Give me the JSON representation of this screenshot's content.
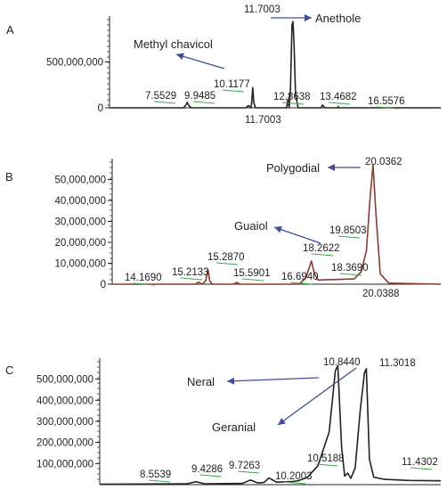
{
  "chart_data": [
    {
      "panel": "A",
      "type": "line",
      "title": "",
      "xlabel": "",
      "ylabel": "",
      "xlim": [
        4.5,
        17.5
      ],
      "ylim": [
        0,
        1000000000
      ],
      "yticks": [
        0,
        500000000
      ],
      "ytick_labels": [
        "0",
        "500,000,000"
      ],
      "line_color": "#222222",
      "points": [
        [
          4.5,
          0
        ],
        [
          7.4,
          0
        ],
        [
          7.5,
          30000000
        ],
        [
          7.55,
          60000000
        ],
        [
          7.6,
          30000000
        ],
        [
          7.7,
          0
        ],
        [
          9.85,
          0
        ],
        [
          9.95,
          25000000
        ],
        [
          10.05,
          0
        ],
        [
          10.08,
          60000000
        ],
        [
          10.12,
          220000000
        ],
        [
          10.16,
          60000000
        ],
        [
          10.22,
          0
        ],
        [
          11.45,
          0
        ],
        [
          11.5,
          90000000
        ],
        [
          11.55,
          0
        ],
        [
          11.6,
          200000000
        ],
        [
          11.66,
          900000000
        ],
        [
          11.7,
          940000000
        ],
        [
          11.74,
          700000000
        ],
        [
          11.8,
          150000000
        ],
        [
          11.9,
          0
        ],
        [
          12.8,
          0
        ],
        [
          12.86,
          30000000
        ],
        [
          12.95,
          0
        ],
        [
          13.45,
          0
        ],
        [
          13.47,
          15000000
        ],
        [
          13.5,
          0
        ],
        [
          17.5,
          0
        ]
      ],
      "peak_labels": [
        {
          "text": "7.5529",
          "x": 7.55
        },
        {
          "text": "9.9485",
          "x": 9.95
        },
        {
          "text": "10.1177",
          "x": 10.12
        },
        {
          "text": "11.7003",
          "x": 11.7,
          "pos": "top"
        },
        {
          "text": "12.8638",
          "x": 12.86
        },
        {
          "text": "13.4682",
          "x": 13.47
        },
        {
          "text": "16.5576",
          "x": 16.56
        },
        {
          "text": "11.7003",
          "x": 11.7,
          "pos": "below"
        }
      ],
      "annotations": [
        {
          "text": "Methyl chavicol",
          "arrow_to_x": 10.12
        },
        {
          "text": "Anethole",
          "arrow_from_x": 11.7
        }
      ]
    },
    {
      "panel": "B",
      "type": "line",
      "title": "",
      "xlabel": "",
      "ylabel": "",
      "xlim": [
        12.5,
        22.0
      ],
      "ylim": [
        0,
        60000000
      ],
      "yticks": [
        0,
        10000000,
        20000000,
        30000000,
        40000000,
        50000000
      ],
      "ytick_labels": [
        "0",
        "10,000,000",
        "20,000,000",
        "30,000,000",
        "40,000,000",
        "50,000,000"
      ],
      "line_color": "#8b3a2e",
      "points": [
        [
          12.5,
          0
        ],
        [
          14.9,
          0
        ],
        [
          15.0,
          1000000
        ],
        [
          15.1,
          0
        ],
        [
          15.2,
          1500000
        ],
        [
          15.27,
          7000000
        ],
        [
          15.32,
          1500000
        ],
        [
          15.4,
          0
        ],
        [
          16.0,
          0
        ],
        [
          16.1,
          800000
        ],
        [
          16.2,
          0
        ],
        [
          17.9,
          0
        ],
        [
          18.1,
          3000000
        ],
        [
          18.26,
          11000000
        ],
        [
          18.35,
          5000000
        ],
        [
          18.45,
          2000000
        ],
        [
          19.5,
          2500000
        ],
        [
          19.7,
          6000000
        ],
        [
          19.85,
          16000000
        ],
        [
          19.95,
          40000000
        ],
        [
          20.04,
          57000000
        ],
        [
          20.12,
          35000000
        ],
        [
          20.25,
          5000000
        ],
        [
          20.5,
          500000
        ],
        [
          22.0,
          0
        ]
      ],
      "peak_labels": [
        {
          "text": "14.1690",
          "x": 14.17
        },
        {
          "text": "15.2133",
          "x": 15.21
        },
        {
          "text": "15.2870",
          "x": 15.29
        },
        {
          "text": "15.5901",
          "x": 15.59
        },
        {
          "text": "16.6940",
          "x": 16.69
        },
        {
          "text": "18.2622",
          "x": 18.26
        },
        {
          "text": "18.3690",
          "x": 18.37
        },
        {
          "text": "19.8503",
          "x": 19.85
        },
        {
          "text": "20.0362",
          "x": 20.04,
          "pos": "top"
        },
        {
          "text": "20.0388",
          "x": 20.04,
          "pos": "below"
        }
      ],
      "annotations": [
        {
          "text": "Polygodial",
          "arrow_to_x": 20.04
        },
        {
          "text": "Guaiol",
          "arrow_to_x": 18.26
        }
      ]
    },
    {
      "panel": "C",
      "type": "line",
      "title": "",
      "xlabel": "",
      "ylabel": "",
      "xlim": [
        7.0,
        12.5
      ],
      "ylim": [
        0,
        600000000
      ],
      "yticks": [
        100000000,
        200000000,
        300000000,
        400000000,
        500000000
      ],
      "ytick_labels": [
        "100,000,000",
        "200,000,000",
        "300,000,000",
        "400,000,000",
        "500,000,000"
      ],
      "line_color": "#222222",
      "points": [
        [
          7.0,
          2000000
        ],
        [
          8.4,
          4000000
        ],
        [
          8.55,
          14000000
        ],
        [
          8.7,
          4000000
        ],
        [
          9.3,
          6000000
        ],
        [
          9.43,
          22000000
        ],
        [
          9.55,
          8000000
        ],
        [
          9.65,
          10000000
        ],
        [
          9.73,
          32000000
        ],
        [
          9.85,
          12000000
        ],
        [
          10.1,
          15000000
        ],
        [
          10.2,
          18000000
        ],
        [
          10.35,
          35000000
        ],
        [
          10.52,
          90000000
        ],
        [
          10.7,
          250000000
        ],
        [
          10.8,
          540000000
        ],
        [
          10.84,
          565000000
        ],
        [
          10.9,
          180000000
        ],
        [
          10.95,
          40000000
        ],
        [
          11.0,
          55000000
        ],
        [
          11.05,
          30000000
        ],
        [
          11.12,
          80000000
        ],
        [
          11.2,
          350000000
        ],
        [
          11.27,
          530000000
        ],
        [
          11.3,
          550000000
        ],
        [
          11.35,
          120000000
        ],
        [
          11.42,
          35000000
        ],
        [
          11.6,
          25000000
        ],
        [
          12.0,
          20000000
        ],
        [
          12.5,
          18000000
        ]
      ],
      "peak_labels": [
        {
          "text": "8.5539",
          "x": 8.55
        },
        {
          "text": "9.4286",
          "x": 9.43
        },
        {
          "text": "9.7263",
          "x": 9.73
        },
        {
          "text": "10.2003",
          "x": 10.2
        },
        {
          "text": "10.5188",
          "x": 10.52
        },
        {
          "text": "10.8440",
          "x": 10.84,
          "pos": "top"
        },
        {
          "text": "11.3018",
          "x": 11.3,
          "pos": "top"
        },
        {
          "text": "11.4302",
          "x": 11.43
        }
      ],
      "annotations": [
        {
          "text": "Neral",
          "arrow_to_x": 10.84
        },
        {
          "text": "Geranial",
          "arrow_to_x": 11.3
        }
      ]
    }
  ]
}
